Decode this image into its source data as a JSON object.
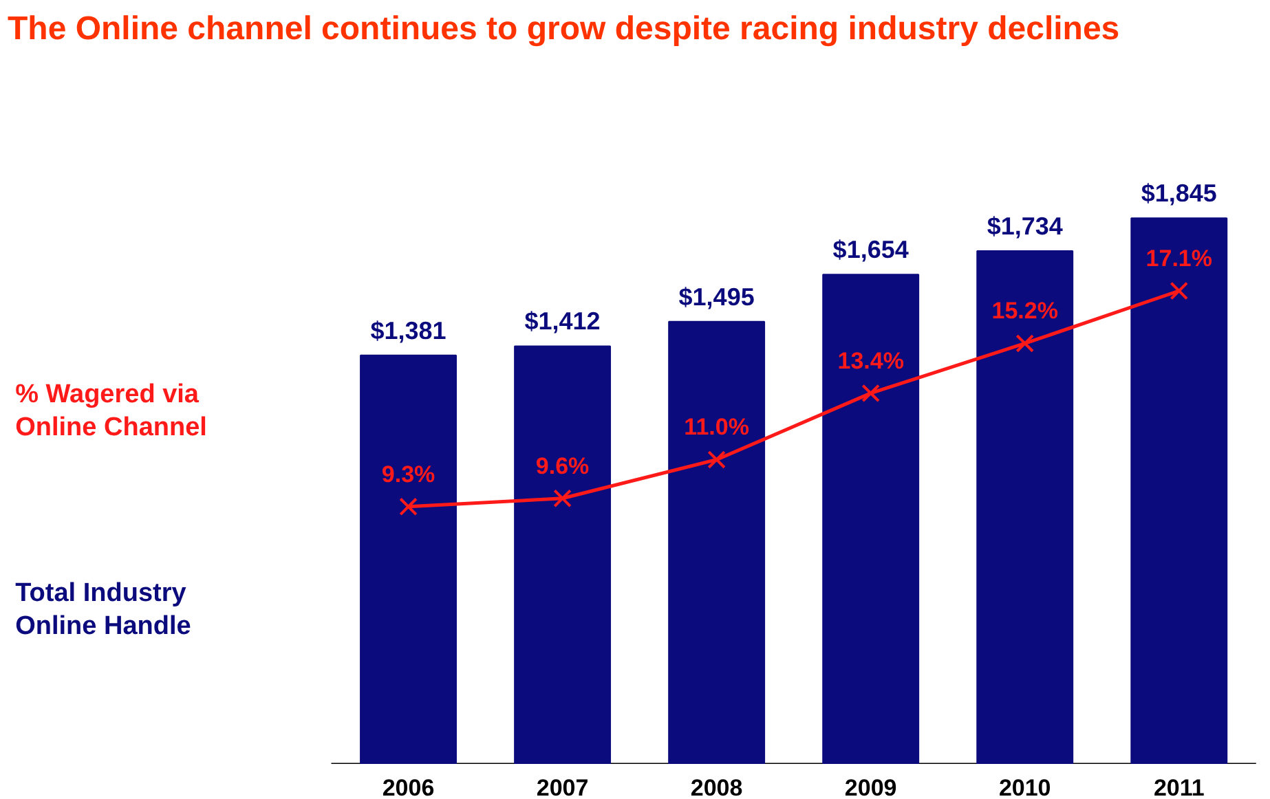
{
  "chart_data": {
    "type": "bar",
    "title": "The Online channel continues to grow despite racing industry declines",
    "categories": [
      "2006",
      "2007",
      "2008",
      "2009",
      "2010",
      "2011"
    ],
    "series": [
      {
        "name": "Total Industry Online Handle",
        "color": "#0b0b7d",
        "values": [
          1381,
          1412,
          1495,
          1654,
          1734,
          1845
        ],
        "value_labels": [
          "$1,381",
          "$1,412",
          "$1,495",
          "$1,654",
          "$1,734",
          "$1,845"
        ]
      },
      {
        "name": "% Wagered via Online Channel",
        "type": "line",
        "axis": "y2",
        "color": "#ff1a1a",
        "marker": "cross",
        "values": [
          9.3,
          9.6,
          11.0,
          13.4,
          15.2,
          17.1
        ],
        "value_labels": [
          "9.3%",
          "9.6%",
          "11.0%",
          "13.4%",
          "15.2%",
          "17.1%"
        ]
      }
    ],
    "legend": "left",
    "grid": false
  }
}
